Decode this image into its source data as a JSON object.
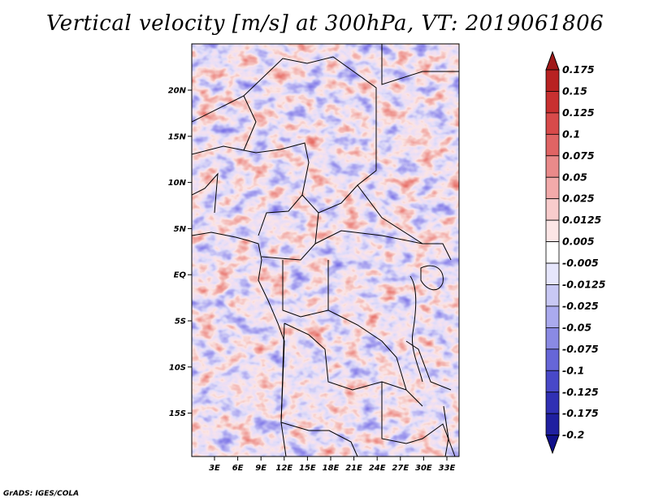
{
  "title": "Vertical velocity [m/s] at 300hPa, VT: 2019061806",
  "credit": "GrADS: IGES/COLA",
  "map": {
    "lat_labels": [
      "20N",
      "15N",
      "10N",
      "5N",
      "EQ",
      "5S",
      "10S",
      "15S"
    ],
    "lon_labels": [
      "3E",
      "6E",
      "9E",
      "12E",
      "15E",
      "18E",
      "21E",
      "24E",
      "27E",
      "30E",
      "33E"
    ]
  },
  "colorbar": {
    "labels": [
      "0.175",
      "0.15",
      "0.125",
      "0.1",
      "0.075",
      "0.05",
      "0.025",
      "0.0125",
      "0.005",
      "-0.005",
      "-0.0125",
      "-0.025",
      "-0.05",
      "-0.075",
      "-0.1",
      "-0.125",
      "-0.175",
      "-0.2"
    ],
    "colors": [
      "#a01a1a",
      "#b82222",
      "#c83030",
      "#d84a4a",
      "#e06464",
      "#ea8a8a",
      "#f2aaaa",
      "#f8cccc",
      "#fce6e6",
      "#ffffff",
      "#e6e6fc",
      "#c8c8f4",
      "#aaaaee",
      "#8a8ae4",
      "#6666d8",
      "#4848c8",
      "#3030b4",
      "#2020a0",
      "#10108a"
    ]
  }
}
